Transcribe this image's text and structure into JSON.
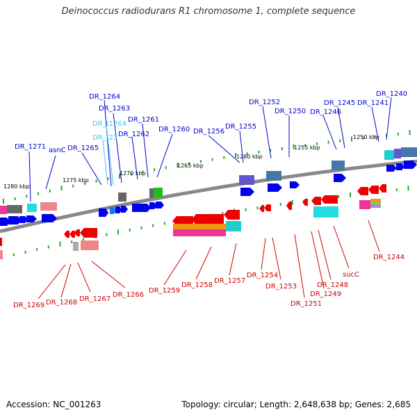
{
  "title": "Deinococcus radiodurans R1 chromosome 1, complete sequence",
  "footer": {
    "accession": "Accession: NC_001263",
    "summary": "Topology: circular; Length: 2,648,638 bp; Genes: 2,685"
  },
  "colors": {
    "backbone": "#888888",
    "tick": "#22aa22",
    "forward_label": "#0000cc",
    "reverse_label": "#cc0000",
    "rna_label": "#33ccee"
  },
  "kbp_labels": [
    "1280 kbp",
    "1275 kbp",
    "1270 kbp",
    "1265 kbp",
    "1260 kbp",
    "1255 kbp",
    "1250 kbp"
  ],
  "forward_genes": [
    "DR_1271",
    "asnC",
    "DR_1265",
    "DR_1264",
    "DR_1263",
    "DR_t1264",
    "DR_t23",
    "DR_1262",
    "DR_1261",
    "DR_1260",
    "DR_1256",
    "DR_1255",
    "DR_1252",
    "DR_1250",
    "DR_1246",
    "DR_1245",
    "DR_1241",
    "DR_1240"
  ],
  "reverse_genes": [
    "DR_1269",
    "DR_1268",
    "DR_1267",
    "DR_1266",
    "DR_1259",
    "DR_1258",
    "DR_1257",
    "DR_1254",
    "DR_1253",
    "DR_1251",
    "DR_1249",
    "DR_1248",
    "sucC",
    "DR_1244"
  ]
}
